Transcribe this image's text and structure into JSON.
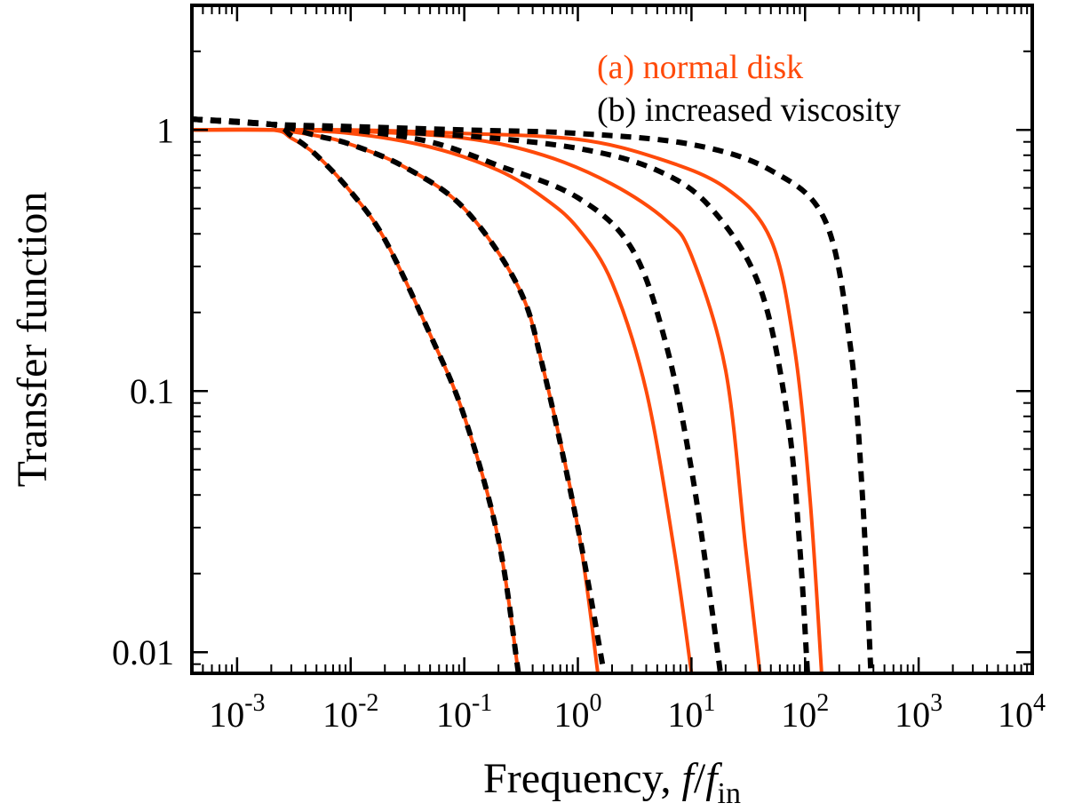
{
  "chart_data": {
    "type": "line",
    "title": "",
    "xlabel_prefix": "Frequency, ",
    "xlabel_var": "f",
    "xlabel_slash": "/",
    "xlabel_var2": "f",
    "xlabel_sub": "in",
    "ylabel": "Transfer function",
    "xscale": "log",
    "yscale": "log",
    "xlim": [
      0.0004,
      10000
    ],
    "ylim": [
      0.0083,
      3.0
    ],
    "grid": false,
    "legend_placement": "top-right",
    "x_ticks": [
      {
        "value": 0.001,
        "base": "10",
        "exp": "-3"
      },
      {
        "value": 0.01,
        "base": "10",
        "exp": "-2"
      },
      {
        "value": 0.1,
        "base": "10",
        "exp": "-1"
      },
      {
        "value": 1,
        "base": "10",
        "exp": "0"
      },
      {
        "value": 10,
        "base": "10",
        "exp": "1"
      },
      {
        "value": 100,
        "base": "10",
        "exp": "2"
      },
      {
        "value": 1000,
        "base": "10",
        "exp": "3"
      },
      {
        "value": 10000,
        "base": "10",
        "exp": "4"
      }
    ],
    "y_ticks": [
      {
        "value": 0.01,
        "label": "0.01"
      },
      {
        "value": 0.1,
        "label": "0.1"
      },
      {
        "value": 1,
        "label": "1"
      }
    ],
    "legend": [
      {
        "label": "(a) normal disk",
        "color": "#ff4a0a",
        "style": "solid"
      },
      {
        "label": "(b) increased viscosity",
        "color": "#000000",
        "style": "dashed"
      }
    ],
    "series": [
      {
        "group": "a",
        "color": "#ff4a0a",
        "style": "solid",
        "points": [
          [
            0.0004,
            1.0
          ],
          [
            0.002,
            1.0
          ],
          [
            0.003,
            0.93
          ],
          [
            0.005,
            0.8
          ],
          [
            0.01,
            0.58
          ],
          [
            0.02,
            0.38
          ],
          [
            0.05,
            0.165
          ],
          [
            0.1,
            0.08
          ],
          [
            0.2,
            0.027
          ],
          [
            0.3,
            0.0083
          ]
        ]
      },
      {
        "group": "a",
        "color": "#ff4a0a",
        "style": "solid",
        "points": [
          [
            0.0004,
            1.0
          ],
          [
            0.002,
            1.0
          ],
          [
            0.005,
            0.95
          ],
          [
            0.01,
            0.88
          ],
          [
            0.03,
            0.72
          ],
          [
            0.1,
            0.5
          ],
          [
            0.3,
            0.25
          ],
          [
            0.5,
            0.12
          ],
          [
            1.0,
            0.03
          ],
          [
            1.5,
            0.0083
          ]
        ]
      },
      {
        "group": "a",
        "color": "#ff4a0a",
        "style": "solid",
        "points": [
          [
            0.0004,
            1.0
          ],
          [
            0.002,
            1.0
          ],
          [
            0.01,
            0.97
          ],
          [
            0.05,
            0.86
          ],
          [
            0.2,
            0.7
          ],
          [
            0.5,
            0.55
          ],
          [
            1.0,
            0.42
          ],
          [
            2.0,
            0.26
          ],
          [
            4.0,
            0.1
          ],
          [
            7.0,
            0.025
          ],
          [
            10.0,
            0.0083
          ]
        ]
      },
      {
        "group": "a",
        "color": "#ff4a0a",
        "style": "solid",
        "points": [
          [
            0.0004,
            1.0
          ],
          [
            0.002,
            1.0
          ],
          [
            0.01,
            0.99
          ],
          [
            0.1,
            0.93
          ],
          [
            0.5,
            0.8
          ],
          [
            2.0,
            0.62
          ],
          [
            6.0,
            0.45
          ],
          [
            10.0,
            0.33
          ],
          [
            20.0,
            0.12
          ],
          [
            30.0,
            0.025
          ],
          [
            40.0,
            0.0083
          ]
        ]
      },
      {
        "group": "a",
        "color": "#ff4a0a",
        "style": "solid",
        "points": [
          [
            0.0004,
            1.0
          ],
          [
            0.002,
            1.0
          ],
          [
            0.01,
            1.0
          ],
          [
            0.1,
            0.97
          ],
          [
            1.0,
            0.92
          ],
          [
            5.0,
            0.78
          ],
          [
            20.0,
            0.6
          ],
          [
            50.0,
            0.38
          ],
          [
            80.0,
            0.15
          ],
          [
            110.0,
            0.04
          ],
          [
            140.0,
            0.0083
          ]
        ]
      },
      {
        "group": "b",
        "color": "#000000",
        "style": "dashed",
        "points": [
          [
            0.0004,
            1.1
          ],
          [
            0.002,
            1.05
          ],
          [
            0.003,
            0.95
          ],
          [
            0.005,
            0.8
          ],
          [
            0.01,
            0.58
          ],
          [
            0.02,
            0.38
          ],
          [
            0.05,
            0.165
          ],
          [
            0.1,
            0.08
          ],
          [
            0.2,
            0.027
          ],
          [
            0.3,
            0.0083
          ]
        ]
      },
      {
        "group": "b",
        "color": "#000000",
        "style": "dashed",
        "points": [
          [
            0.0004,
            1.1
          ],
          [
            0.002,
            1.05
          ],
          [
            0.005,
            0.95
          ],
          [
            0.01,
            0.88
          ],
          [
            0.03,
            0.72
          ],
          [
            0.1,
            0.5
          ],
          [
            0.3,
            0.25
          ],
          [
            0.5,
            0.12
          ],
          [
            1.0,
            0.03
          ],
          [
            1.7,
            0.0083
          ]
        ]
      },
      {
        "group": "b",
        "color": "#000000",
        "style": "dashed",
        "points": [
          [
            0.0004,
            1.1
          ],
          [
            0.002,
            1.05
          ],
          [
            0.01,
            1.0
          ],
          [
            0.05,
            0.9
          ],
          [
            0.2,
            0.73
          ],
          [
            1.0,
            0.55
          ],
          [
            3.0,
            0.35
          ],
          [
            6.0,
            0.15
          ],
          [
            10.0,
            0.05
          ],
          [
            15.0,
            0.015
          ],
          [
            18.0,
            0.0083
          ]
        ]
      },
      {
        "group": "b",
        "color": "#000000",
        "style": "dashed",
        "points": [
          [
            0.0004,
            1.1
          ],
          [
            0.002,
            1.05
          ],
          [
            0.01,
            1.0
          ],
          [
            0.1,
            0.95
          ],
          [
            1.0,
            0.85
          ],
          [
            5.0,
            0.7
          ],
          [
            15.0,
            0.5
          ],
          [
            40.0,
            0.25
          ],
          [
            70.0,
            0.08
          ],
          [
            90.0,
            0.025
          ],
          [
            105.0,
            0.0083
          ]
        ]
      },
      {
        "group": "b",
        "color": "#000000",
        "style": "dashed",
        "points": [
          [
            0.0004,
            1.1
          ],
          [
            0.002,
            1.05
          ],
          [
            0.01,
            1.03
          ],
          [
            0.1,
            1.0
          ],
          [
            1.0,
            0.97
          ],
          [
            10.0,
            0.88
          ],
          [
            50.0,
            0.7
          ],
          [
            150.0,
            0.45
          ],
          [
            250.0,
            0.15
          ],
          [
            320.0,
            0.04
          ],
          [
            380.0,
            0.0083
          ]
        ]
      }
    ]
  }
}
